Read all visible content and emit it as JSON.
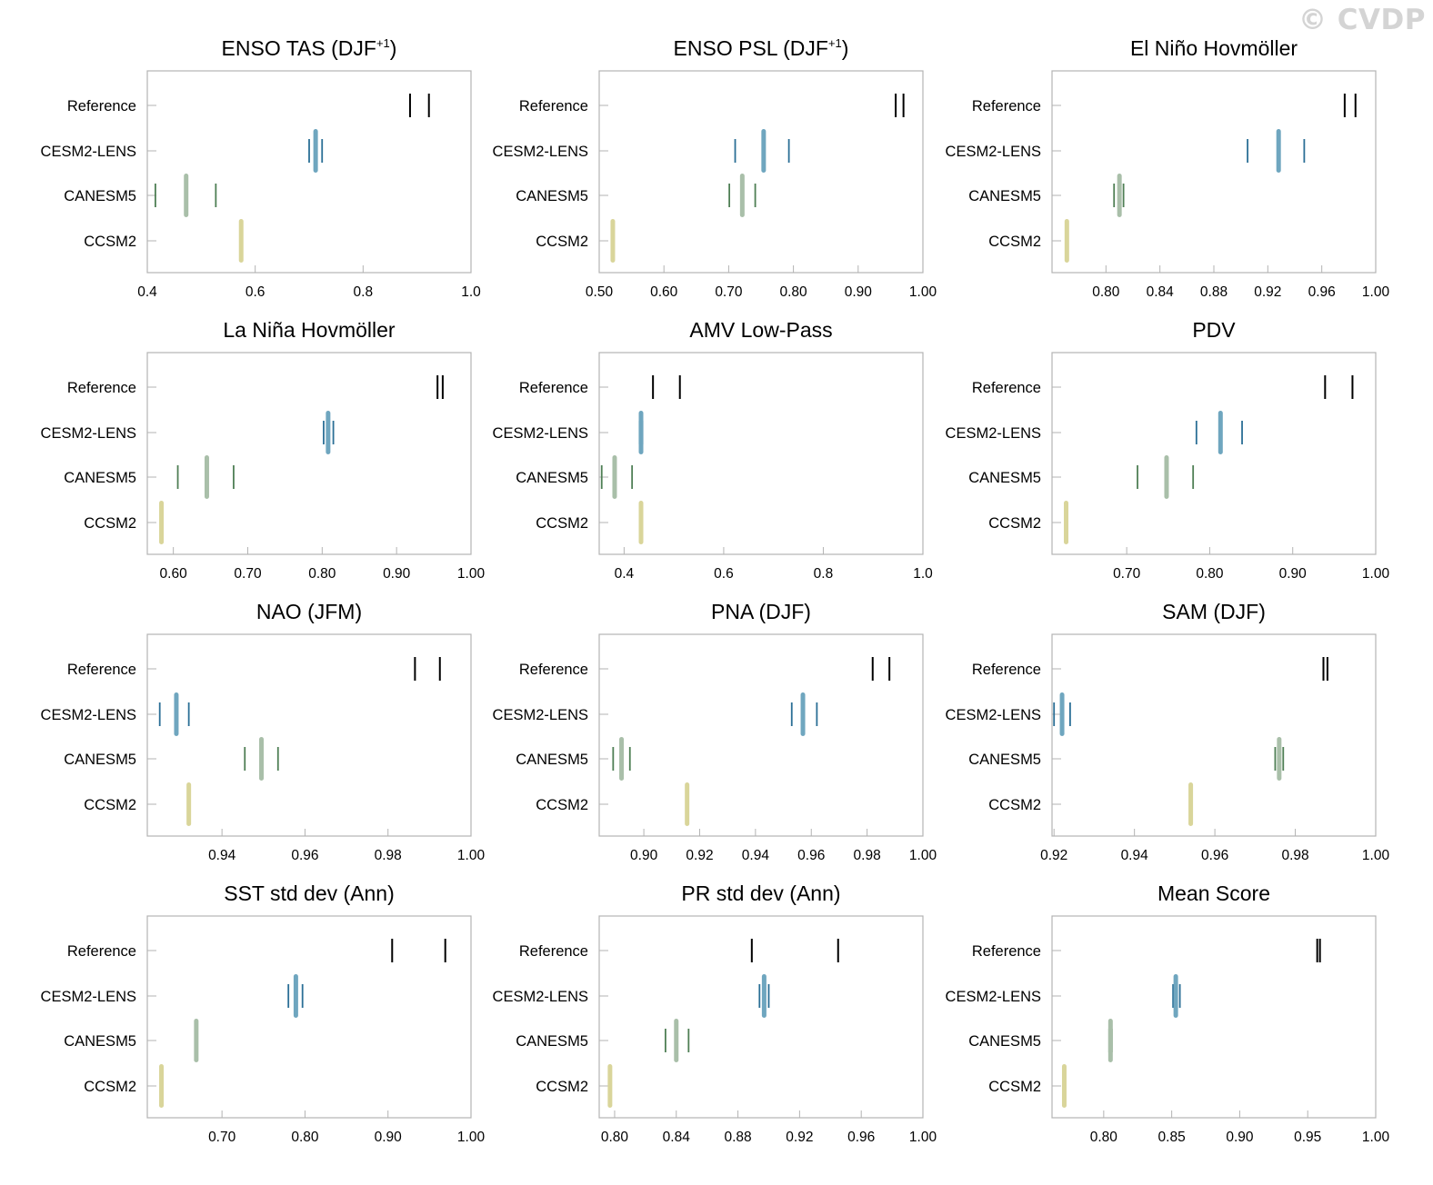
{
  "watermark": "© CVDP",
  "categories": [
    "Reference",
    "CESM2-LENS",
    "CANESM5",
    "CCSM2"
  ],
  "colors": {
    "Reference": "#000000",
    "CESM2-LENS": "#6fa6bf",
    "CESM2-LENS-range": "#2b6f96",
    "CANESM5": "#a9bfa9",
    "CANESM5-range": "#4f7f55",
    "CCSM2": "#d9d59a",
    "CCSM2-range": "#bdb673"
  },
  "chart_data": [
    {
      "type": "scatter",
      "title": "ENSO TAS (DJF",
      "title_sup": "+1",
      "title_end": ")",
      "xlim": [
        0.4,
        1.0
      ],
      "xticks": [
        "0.4",
        "0.6",
        "0.8",
        "1.0"
      ],
      "series": [
        {
          "name": "Reference",
          "low": 0.887,
          "high": 0.922
        },
        {
          "name": "CESM2-LENS",
          "mean": 0.712,
          "low": 0.7,
          "high": 0.724
        },
        {
          "name": "CANESM5",
          "mean": 0.472,
          "low": 0.415,
          "high": 0.527
        },
        {
          "name": "CCSM2",
          "mean": 0.574
        }
      ]
    },
    {
      "type": "scatter",
      "title": "ENSO PSL (DJF",
      "title_sup": "+1",
      "title_end": ")",
      "xlim": [
        0.5,
        1.0
      ],
      "xticks": [
        "0.50",
        "0.60",
        "0.70",
        "0.80",
        "0.90",
        "1.00"
      ],
      "series": [
        {
          "name": "Reference",
          "low": 0.958,
          "high": 0.97
        },
        {
          "name": "CESM2-LENS",
          "mean": 0.754,
          "low": 0.71,
          "high": 0.793
        },
        {
          "name": "CANESM5",
          "mean": 0.721,
          "low": 0.701,
          "high": 0.741
        },
        {
          "name": "CCSM2",
          "mean": 0.521
        }
      ]
    },
    {
      "type": "scatter",
      "title": "El Niño Hovmöller",
      "title_sup": "",
      "title_end": "",
      "xlim": [
        0.76,
        1.0
      ],
      "xticks": [
        "0.80",
        "0.84",
        "0.88",
        "0.92",
        "0.96",
        "1.00"
      ],
      "series": [
        {
          "name": "Reference",
          "low": 0.977,
          "high": 0.985
        },
        {
          "name": "CESM2-LENS",
          "mean": 0.928,
          "low": 0.905,
          "high": 0.947
        },
        {
          "name": "CANESM5",
          "mean": 0.81,
          "low": 0.806,
          "high": 0.813
        },
        {
          "name": "CCSM2",
          "mean": 0.771
        }
      ]
    },
    {
      "type": "scatter",
      "title": "La Niña Hovmöller",
      "title_sup": "",
      "title_end": "",
      "xlim": [
        0.565,
        1.0
      ],
      "xticks": [
        "0.60",
        "0.70",
        "0.80",
        "0.90",
        "1.00"
      ],
      "series": [
        {
          "name": "Reference",
          "low": 0.955,
          "high": 0.962
        },
        {
          "name": "CESM2-LENS",
          "mean": 0.808,
          "low": 0.802,
          "high": 0.815
        },
        {
          "name": "CANESM5",
          "mean": 0.645,
          "low": 0.606,
          "high": 0.681
        },
        {
          "name": "CCSM2",
          "mean": 0.584
        }
      ]
    },
    {
      "type": "scatter",
      "title": "AMV Low-Pass",
      "title_sup": "",
      "title_end": "",
      "xlim": [
        0.35,
        1.0
      ],
      "xticks": [
        "0.4",
        "0.6",
        "0.8",
        "1.0"
      ],
      "series": [
        {
          "name": "Reference",
          "low": 0.458,
          "high": 0.512
        },
        {
          "name": "CESM2-LENS",
          "mean": 0.434,
          "low": 0.431,
          "high": 0.437
        },
        {
          "name": "CANESM5",
          "mean": 0.381,
          "low": 0.355,
          "high": 0.416
        },
        {
          "name": "CCSM2",
          "mean": 0.434
        }
      ]
    },
    {
      "type": "scatter",
      "title": "PDV",
      "title_sup": "",
      "title_end": "",
      "xlim": [
        0.61,
        1.0
      ],
      "xticks": [
        "0.70",
        "0.80",
        "0.90",
        "1.00"
      ],
      "series": [
        {
          "name": "Reference",
          "low": 0.939,
          "high": 0.972
        },
        {
          "name": "CESM2-LENS",
          "mean": 0.813,
          "low": 0.784,
          "high": 0.839
        },
        {
          "name": "CANESM5",
          "mean": 0.748,
          "low": 0.713,
          "high": 0.78
        },
        {
          "name": "CCSM2",
          "mean": 0.627
        }
      ]
    },
    {
      "type": "scatter",
      "title": "NAO (JFM)",
      "title_sup": "",
      "title_end": "",
      "xlim": [
        0.922,
        1.0
      ],
      "xticks": [
        "0.94",
        "0.96",
        "0.98",
        "1.00"
      ],
      "series": [
        {
          "name": "Reference",
          "low": 0.9865,
          "high": 0.9925
        },
        {
          "name": "CESM2-LENS",
          "mean": 0.929,
          "low": 0.925,
          "high": 0.932
        },
        {
          "name": "CANESM5",
          "mean": 0.9495,
          "low": 0.9455,
          "high": 0.9535
        },
        {
          "name": "CCSM2",
          "mean": 0.932
        }
      ]
    },
    {
      "type": "scatter",
      "title": "PNA (DJF)",
      "title_sup": "",
      "title_end": "",
      "xlim": [
        0.884,
        1.0
      ],
      "xticks": [
        "0.90",
        "0.92",
        "0.94",
        "0.96",
        "0.98",
        "1.00"
      ],
      "series": [
        {
          "name": "Reference",
          "low": 0.982,
          "high": 0.988
        },
        {
          "name": "CESM2-LENS",
          "mean": 0.957,
          "low": 0.953,
          "high": 0.962
        },
        {
          "name": "CANESM5",
          "mean": 0.892,
          "low": 0.889,
          "high": 0.895
        },
        {
          "name": "CCSM2",
          "mean": 0.9155
        }
      ]
    },
    {
      "type": "scatter",
      "title": "SAM (DJF)",
      "title_sup": "",
      "title_end": "",
      "xlim": [
        0.9195,
        1.0
      ],
      "xticks": [
        "0.92",
        "0.94",
        "0.96",
        "0.98",
        "1.00"
      ],
      "series": [
        {
          "name": "Reference",
          "low": 0.987,
          "high": 0.988
        },
        {
          "name": "CESM2-LENS",
          "mean": 0.922,
          "low": 0.92,
          "high": 0.924
        },
        {
          "name": "CANESM5",
          "mean": 0.976,
          "low": 0.975,
          "high": 0.977
        },
        {
          "name": "CCSM2",
          "mean": 0.954
        }
      ]
    },
    {
      "type": "scatter",
      "title": "SST std dev (Ann)",
      "title_sup": "",
      "title_end": "",
      "xlim": [
        0.61,
        1.0
      ],
      "xticks": [
        "0.70",
        "0.80",
        "0.90",
        "1.00"
      ],
      "series": [
        {
          "name": "Reference",
          "low": 0.905,
          "high": 0.969
        },
        {
          "name": "CESM2-LENS",
          "mean": 0.789,
          "low": 0.78,
          "high": 0.797
        },
        {
          "name": "CANESM5",
          "mean": 0.669,
          "low": 0.668,
          "high": 0.67
        },
        {
          "name": "CCSM2",
          "mean": 0.627
        }
      ]
    },
    {
      "type": "scatter",
      "title": "PR std dev (Ann)",
      "title_sup": "",
      "title_end": "",
      "xlim": [
        0.79,
        1.0
      ],
      "xticks": [
        "0.80",
        "0.84",
        "0.88",
        "0.92",
        "0.96",
        "1.00"
      ],
      "series": [
        {
          "name": "Reference",
          "low": 0.889,
          "high": 0.945
        },
        {
          "name": "CESM2-LENS",
          "mean": 0.897,
          "low": 0.894,
          "high": 0.9
        },
        {
          "name": "CANESM5",
          "mean": 0.84,
          "low": 0.833,
          "high": 0.848
        },
        {
          "name": "CCSM2",
          "mean": 0.797
        }
      ]
    },
    {
      "type": "scatter",
      "title": "Mean Score",
      "title_sup": "",
      "title_end": "",
      "xlim": [
        0.762,
        1.0
      ],
      "xticks": [
        "0.80",
        "0.85",
        "0.90",
        "0.95",
        "1.00"
      ],
      "series": [
        {
          "name": "Reference",
          "low": 0.957,
          "high": 0.959
        },
        {
          "name": "CESM2-LENS",
          "mean": 0.853,
          "low": 0.851,
          "high": 0.856
        },
        {
          "name": "CANESM5",
          "mean": 0.805,
          "low": 0.804,
          "high": 0.806
        },
        {
          "name": "CCSM2",
          "mean": 0.771
        }
      ]
    }
  ]
}
